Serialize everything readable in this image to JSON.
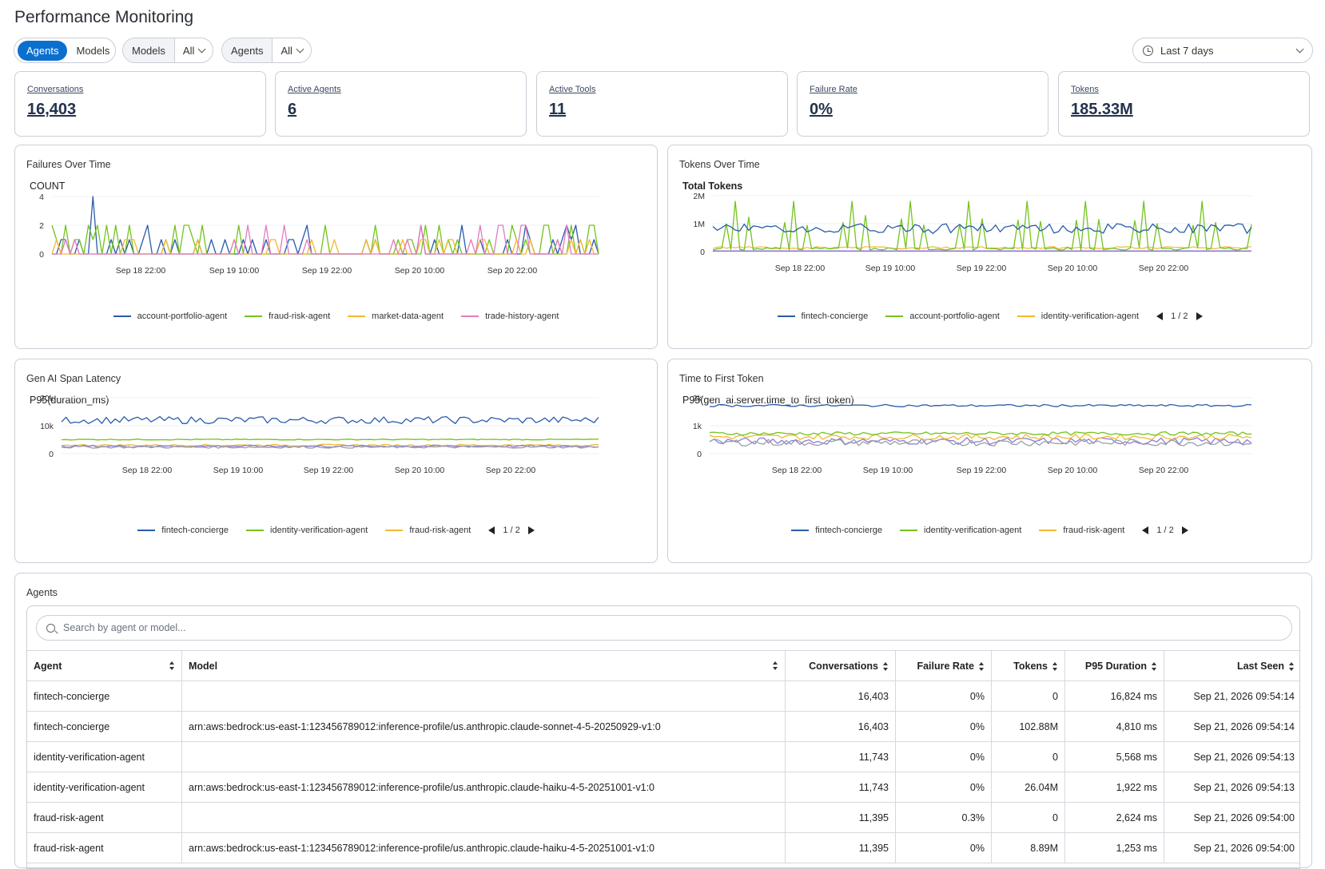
{
  "page": {
    "title": "Performance Monitoring"
  },
  "toolbar": {
    "view_toggle": {
      "options": [
        "Agents",
        "Models"
      ],
      "selected": "Agents"
    },
    "models_filter": {
      "label": "Models",
      "value": "All"
    },
    "agents_filter": {
      "label": "Agents",
      "value": "All"
    },
    "time_range": "Last 7 days"
  },
  "kpis": [
    {
      "label": "Conversations",
      "value": "16,403"
    },
    {
      "label": "Active Agents",
      "value": "6"
    },
    {
      "label": "Active Tools",
      "value": "11"
    },
    {
      "label": "Failure Rate",
      "value": "0%"
    },
    {
      "label": "Tokens",
      "value": "185.33M"
    }
  ],
  "colors": {
    "blue": "#2a5caa",
    "green": "#73c41d",
    "orange": "#f5b731",
    "pink": "#e37bc0",
    "purple": "#8b7bd8",
    "gray": "#9aa0a6",
    "accent": "#0b6fce"
  },
  "panels": {
    "failures": {
      "title": "Failures Over Time",
      "ylabel": "COUNT",
      "yticks": [
        "4",
        "2",
        "0"
      ],
      "xticks": [
        "Sep 18 22:00",
        "Sep 19 10:00",
        "Sep 19 22:00",
        "Sep 20 10:00",
        "Sep 20 22:00"
      ],
      "legend": [
        "account-portfolio-agent",
        "fraud-risk-agent",
        "market-data-agent",
        "trade-history-agent"
      ]
    },
    "tokens": {
      "title": "Tokens Over Time",
      "ylabel": "Total Tokens",
      "yticks": [
        "2M",
        "1M",
        "0"
      ],
      "xticks": [
        "Sep 18 22:00",
        "Sep 19 10:00",
        "Sep 19 22:00",
        "Sep 20 10:00",
        "Sep 20 22:00"
      ],
      "legend": [
        "fintech-concierge",
        "account-portfolio-agent",
        "identity-verification-agent"
      ],
      "pager": "1 / 2"
    },
    "latency": {
      "title": "Gen AI Span Latency",
      "ylabel": "P95(duration_ms)",
      "yticks": [
        "20k",
        "10k",
        "0"
      ],
      "xticks": [
        "Sep 18 22:00",
        "Sep 19 10:00",
        "Sep 19 22:00",
        "Sep 20 10:00",
        "Sep 20 22:00"
      ],
      "legend": [
        "fintech-concierge",
        "identity-verification-agent",
        "fraud-risk-agent"
      ],
      "pager": "1 / 2"
    },
    "ttft": {
      "title": "Time to First Token",
      "ylabel": "P95(gen_ai.server.time_to_first_token)",
      "yticks": [
        "2k",
        "1k",
        "0"
      ],
      "xticks": [
        "Sep 18 22:00",
        "Sep 19 10:00",
        "Sep 19 22:00",
        "Sep 20 10:00",
        "Sep 20 22:00"
      ],
      "legend": [
        "fintech-concierge",
        "identity-verification-agent",
        "fraud-risk-agent"
      ],
      "pager": "1 / 2"
    }
  },
  "agents_table": {
    "title": "Agents",
    "search_placeholder": "Search by agent or model...",
    "columns": [
      "Agent",
      "Model",
      "Conversations",
      "Failure Rate",
      "Tokens",
      "P95 Duration",
      "Last Seen"
    ],
    "rows": [
      [
        "fintech-concierge",
        "",
        "16,403",
        "0%",
        "0",
        "16,824 ms",
        "Sep 21, 2026 09:54:14"
      ],
      [
        "fintech-concierge",
        "arn:aws:bedrock:us-east-1:123456789012:inference-profile/us.anthropic.claude-sonnet-4-5-20250929-v1:0",
        "16,403",
        "0%",
        "102.88M",
        "4,810 ms",
        "Sep 21, 2026 09:54:14"
      ],
      [
        "identity-verification-agent",
        "",
        "11,743",
        "0%",
        "0",
        "5,568 ms",
        "Sep 21, 2026 09:54:13"
      ],
      [
        "identity-verification-agent",
        "arn:aws:bedrock:us-east-1:123456789012:inference-profile/us.anthropic.claude-haiku-4-5-20251001-v1:0",
        "11,743",
        "0%",
        "26.04M",
        "1,922 ms",
        "Sep 21, 2026 09:54:13"
      ],
      [
        "fraud-risk-agent",
        "",
        "11,395",
        "0.3%",
        "0",
        "2,624 ms",
        "Sep 21, 2026 09:54:00"
      ],
      [
        "fraud-risk-agent",
        "arn:aws:bedrock:us-east-1:123456789012:inference-profile/us.anthropic.claude-haiku-4-5-20251001-v1:0",
        "11,395",
        "0%",
        "8.89M",
        "1,253 ms",
        "Sep 21, 2026 09:54:00"
      ]
    ]
  }
}
